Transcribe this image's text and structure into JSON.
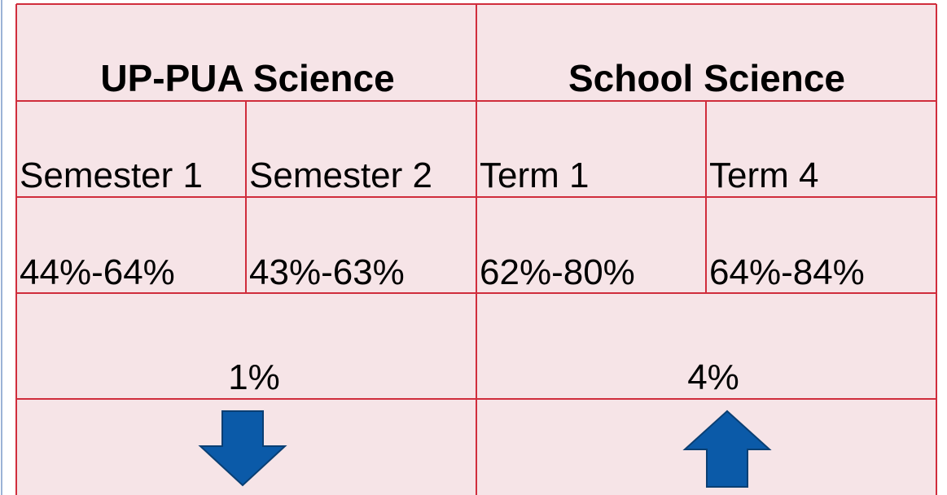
{
  "table": {
    "headers": [
      "UP-PUA Science",
      "School Science"
    ],
    "subheaders": [
      "Semester 1",
      "Semester 2",
      "Term 1",
      "Term 4"
    ],
    "ranges": [
      "44%-64%",
      "43%-63%",
      "62%-80%",
      "64%-84%"
    ],
    "changes": [
      "1%",
      "4%"
    ]
  }
}
